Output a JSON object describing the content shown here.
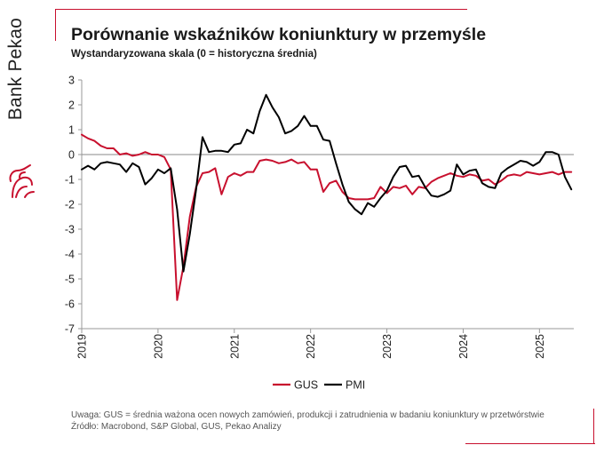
{
  "brand": {
    "name": "Bank Pekao"
  },
  "header": {
    "title": "Porównanie wskaźników koniunktury w przemyśle",
    "subtitle": "Wystandaryzowana skala (0 = historyczna średnia)"
  },
  "footer": {
    "note": "Uwaga: GUS = średnia ważona ocen nowych zamówień, produkcji i zatrudnienia w badaniu koniunktury w przetwórstwie",
    "source": "Źródło: Macrobond, S&P Global, GUS, Pekao Analizy"
  },
  "chart_data": {
    "type": "line",
    "title": "Porównanie wskaźników koniunktury w przemyśle",
    "subtitle": "Wystandaryzowana skala (0 = historyczna średnia)",
    "xlabel": "",
    "ylabel": "",
    "ylim": [
      -7,
      3
    ],
    "yticks": [
      3,
      2,
      1,
      0,
      -1,
      -2,
      -3,
      -4,
      -5,
      -6,
      -7
    ],
    "xlim": [
      2019.0,
      2025.45
    ],
    "xticks": [
      "2019",
      "2020",
      "2021",
      "2022",
      "2023",
      "2024",
      "2025"
    ],
    "grid": false,
    "zero_line": true,
    "legend": {
      "position": "bottom-center",
      "entries": [
        "GUS",
        "PMI"
      ]
    },
    "colors": {
      "GUS": "#c8102e",
      "PMI": "#000000",
      "accent": "#c8102e"
    },
    "x": [
      2019.0,
      2019.083,
      2019.167,
      2019.25,
      2019.333,
      2019.417,
      2019.5,
      2019.583,
      2019.667,
      2019.75,
      2019.833,
      2019.917,
      2020.0,
      2020.083,
      2020.167,
      2020.25,
      2020.333,
      2020.417,
      2020.5,
      2020.583,
      2020.667,
      2020.75,
      2020.833,
      2020.917,
      2021.0,
      2021.083,
      2021.167,
      2021.25,
      2021.333,
      2021.417,
      2021.5,
      2021.583,
      2021.667,
      2021.75,
      2021.833,
      2021.917,
      2022.0,
      2022.083,
      2022.167,
      2022.25,
      2022.333,
      2022.417,
      2022.5,
      2022.583,
      2022.667,
      2022.75,
      2022.833,
      2022.917,
      2023.0,
      2023.083,
      2023.167,
      2023.25,
      2023.333,
      2023.417,
      2023.5,
      2023.583,
      2023.667,
      2023.75,
      2023.833,
      2023.917,
      2024.0,
      2024.083,
      2024.167,
      2024.25,
      2024.333,
      2024.417,
      2024.5,
      2024.583,
      2024.667,
      2024.75,
      2024.833,
      2024.917,
      2025.0,
      2025.083,
      2025.167,
      2025.25,
      2025.333,
      2025.417
    ],
    "series": [
      {
        "name": "GUS",
        "values": [
          0.8,
          0.65,
          0.55,
          0.35,
          0.25,
          0.25,
          0.0,
          0.05,
          -0.05,
          0.0,
          0.1,
          0.0,
          0.0,
          -0.1,
          -0.6,
          -5.85,
          -4.5,
          -2.5,
          -1.3,
          -0.75,
          -0.7,
          -0.55,
          -1.6,
          -0.9,
          -0.75,
          -0.85,
          -0.7,
          -0.7,
          -0.25,
          -0.2,
          -0.25,
          -0.35,
          -0.3,
          -0.2,
          -0.35,
          -0.3,
          -0.6,
          -0.6,
          -1.5,
          -1.15,
          -1.05,
          -1.5,
          -1.75,
          -1.8,
          -1.8,
          -1.8,
          -1.75,
          -1.3,
          -1.55,
          -1.3,
          -1.35,
          -1.25,
          -1.6,
          -1.3,
          -1.35,
          -1.1,
          -0.95,
          -0.85,
          -0.75,
          -0.85,
          -0.9,
          -0.8,
          -0.85,
          -1.05,
          -1.0,
          -1.2,
          -1.05,
          -0.85,
          -0.8,
          -0.85,
          -0.7,
          -0.75,
          -0.8,
          -0.75,
          -0.7,
          -0.8,
          -0.7,
          -0.7
        ]
      },
      {
        "name": "PMI",
        "values": [
          -0.6,
          -0.45,
          -0.6,
          -0.35,
          -0.3,
          -0.35,
          -0.4,
          -0.7,
          -0.35,
          -0.5,
          -1.2,
          -0.95,
          -0.6,
          -0.75,
          -0.55,
          -2.2,
          -4.7,
          -3.2,
          -1.4,
          0.7,
          0.1,
          0.15,
          0.15,
          0.1,
          0.4,
          0.45,
          1.0,
          0.85,
          1.75,
          2.4,
          1.9,
          1.5,
          0.85,
          0.95,
          1.15,
          1.55,
          1.15,
          1.15,
          0.6,
          0.55,
          -0.35,
          -1.2,
          -1.9,
          -2.2,
          -2.4,
          -1.95,
          -2.1,
          -1.75,
          -1.45,
          -0.9,
          -0.5,
          -0.45,
          -0.9,
          -0.85,
          -1.3,
          -1.65,
          -1.7,
          -1.6,
          -1.45,
          -0.4,
          -0.8,
          -0.65,
          -0.6,
          -1.15,
          -1.3,
          -1.35,
          -0.75,
          -0.55,
          -0.4,
          -0.25,
          -0.3,
          -0.45,
          -0.3,
          0.1,
          0.1,
          0.0,
          -0.9,
          -1.4
        ]
      }
    ]
  }
}
